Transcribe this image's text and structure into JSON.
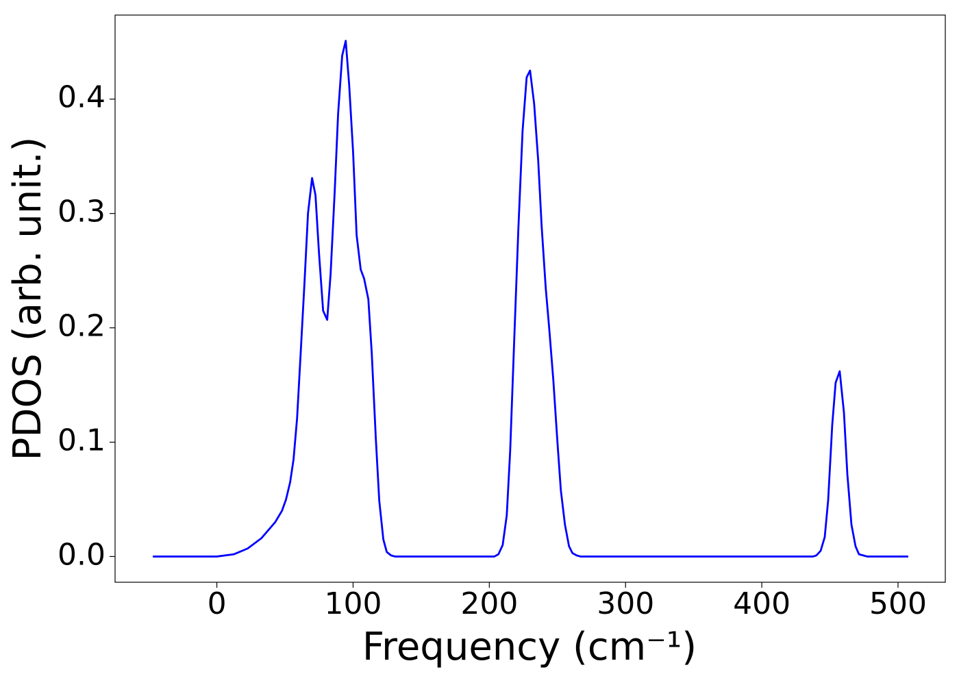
{
  "chart_data": {
    "type": "line",
    "x_label": "Frequency (cm⁻¹)",
    "y_label": "PDOS (arb. unit.)",
    "x": [
      -47,
      0,
      12.6,
      22.6,
      32.7,
      42.8,
      47.8,
      50.8,
      53.8,
      56.3,
      58.9,
      61.4,
      64.4,
      66.9,
      69.9,
      72.4,
      75,
      78,
      81,
      83.5,
      86.5,
      89,
      92,
      94.6,
      97.1,
      100,
      102.6,
      105.6,
      108.1,
      111.2,
      113.7,
      116.7,
      119.2,
      122.2,
      124.7,
      127.8,
      130.8,
      203.7,
      206.7,
      209.8,
      212.8,
      215.3,
      218.3,
      221.3,
      224.4,
      227.4,
      229.9,
      232.9,
      235.9,
      238.4,
      241.4,
      244,
      247,
      250,
      252.5,
      255.5,
      258.5,
      261,
      264,
      267,
      437.6,
      440.1,
      443.2,
      446.2,
      448.7,
      451.7,
      454.2,
      457.2,
      460.3,
      462.8,
      465.8,
      468.8,
      471.3,
      474.3,
      477.4,
      507.5
    ],
    "series": [
      {
        "color": "#0000ff",
        "values": [
          0,
          0,
          0.002,
          0.007,
          0.016,
          0.03,
          0.04,
          0.05,
          0.065,
          0.085,
          0.121,
          0.175,
          0.241,
          0.3,
          0.331,
          0.316,
          0.265,
          0.215,
          0.207,
          0.247,
          0.319,
          0.387,
          0.438,
          0.451,
          0.413,
          0.354,
          0.281,
          0.251,
          0.243,
          0.225,
          0.178,
          0.103,
          0.049,
          0.015,
          0.004,
          0.001,
          0,
          0,
          0.002,
          0.01,
          0.036,
          0.092,
          0.19,
          0.286,
          0.372,
          0.419,
          0.425,
          0.396,
          0.346,
          0.289,
          0.235,
          0.199,
          0.154,
          0.1,
          0.058,
          0.028,
          0.009,
          0.003,
          0.001,
          0,
          0,
          0.001,
          0.005,
          0.017,
          0.049,
          0.115,
          0.152,
          0.162,
          0.126,
          0.072,
          0.028,
          0.009,
          0.002,
          0.001,
          0,
          0
        ]
      }
    ],
    "xlim": [
      -74.7,
      534.7
    ],
    "ylim": [
      -0.0225,
      0.4735
    ],
    "xticks": [
      0,
      100,
      200,
      300,
      400,
      500
    ],
    "yticks": [
      {
        "value": 0,
        "label": "0.0"
      },
      0.1,
      0.2,
      0.3,
      0.4
    ],
    "grid": false
  }
}
